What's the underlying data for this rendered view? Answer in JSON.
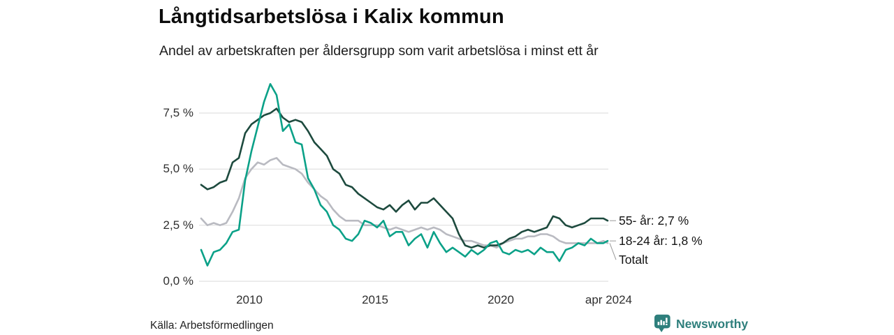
{
  "source": "Källa: Arbetsförmedlingen",
  "logo": {
    "label": "Newsworthy",
    "brand_color": "#2e7f7c"
  },
  "chart_data": {
    "type": "line",
    "title": "Långtidsarbetslösa i Kalix kommun",
    "subtitle": "Andel av arbetskraften per åldersgrupp som varit arbetslösa i minst ett år",
    "xlabel": "",
    "ylabel": "",
    "unit": "%",
    "ylim": [
      0,
      9.3
    ],
    "x_range": [
      "2008-02",
      "2024-04"
    ],
    "grid": "horizontal",
    "grid_color": "#dadada",
    "leader_color": "#999999",
    "legend_position": "end-of-line-labels",
    "y_ticks": [
      {
        "value": 7.5,
        "label": "7,5 %"
      },
      {
        "value": 5.0,
        "label": "5,0 %"
      },
      {
        "value": 2.5,
        "label": "2,5 %"
      },
      {
        "value": 0.0,
        "label": "0,0 %"
      }
    ],
    "x_ticks": [
      {
        "label": "2010",
        "position": 2010
      },
      {
        "label": "2015",
        "position": 2015
      },
      {
        "label": "2020",
        "position": 2020
      },
      {
        "label": "apr 2024",
        "position": 2024.29
      }
    ],
    "series": [
      {
        "name": "55- år",
        "color": "#1d4a3e",
        "end_label": "55- år: 2,7 %",
        "end_value": 2.7,
        "points": [
          [
            "2008-02",
            4.3
          ],
          [
            "2008-05",
            4.1
          ],
          [
            "2008-08",
            4.2
          ],
          [
            "2008-11",
            4.4
          ],
          [
            "2009-02",
            4.5
          ],
          [
            "2009-05",
            5.3
          ],
          [
            "2009-08",
            5.5
          ],
          [
            "2009-11",
            6.6
          ],
          [
            "2010-02",
            7.0
          ],
          [
            "2010-05",
            7.2
          ],
          [
            "2010-08",
            7.4
          ],
          [
            "2010-11",
            7.5
          ],
          [
            "2011-02",
            7.7
          ],
          [
            "2011-05",
            7.3
          ],
          [
            "2011-08",
            7.1
          ],
          [
            "2011-11",
            7.2
          ],
          [
            "2012-02",
            7.1
          ],
          [
            "2012-05",
            6.7
          ],
          [
            "2012-08",
            6.2
          ],
          [
            "2012-11",
            5.9
          ],
          [
            "2013-02",
            5.6
          ],
          [
            "2013-05",
            5.0
          ],
          [
            "2013-08",
            4.8
          ],
          [
            "2013-11",
            4.3
          ],
          [
            "2014-02",
            4.2
          ],
          [
            "2014-05",
            3.9
          ],
          [
            "2014-08",
            3.7
          ],
          [
            "2014-11",
            3.5
          ],
          [
            "2015-02",
            3.3
          ],
          [
            "2015-05",
            3.2
          ],
          [
            "2015-08",
            3.4
          ],
          [
            "2015-11",
            3.1
          ],
          [
            "2016-02",
            3.4
          ],
          [
            "2016-05",
            3.6
          ],
          [
            "2016-08",
            3.2
          ],
          [
            "2016-11",
            3.5
          ],
          [
            "2017-02",
            3.5
          ],
          [
            "2017-05",
            3.7
          ],
          [
            "2017-08",
            3.4
          ],
          [
            "2017-11",
            3.1
          ],
          [
            "2018-02",
            2.8
          ],
          [
            "2018-05",
            2.1
          ],
          [
            "2018-08",
            1.6
          ],
          [
            "2018-11",
            1.5
          ],
          [
            "2019-02",
            1.6
          ],
          [
            "2019-05",
            1.5
          ],
          [
            "2019-08",
            1.6
          ],
          [
            "2019-11",
            1.6
          ],
          [
            "2020-02",
            1.7
          ],
          [
            "2020-05",
            1.9
          ],
          [
            "2020-08",
            2.0
          ],
          [
            "2020-11",
            2.2
          ],
          [
            "2021-02",
            2.3
          ],
          [
            "2021-05",
            2.2
          ],
          [
            "2021-08",
            2.3
          ],
          [
            "2021-11",
            2.4
          ],
          [
            "2022-02",
            2.9
          ],
          [
            "2022-05",
            2.8
          ],
          [
            "2022-08",
            2.5
          ],
          [
            "2022-11",
            2.4
          ],
          [
            "2023-02",
            2.5
          ],
          [
            "2023-05",
            2.6
          ],
          [
            "2023-08",
            2.8
          ],
          [
            "2023-11",
            2.8
          ],
          [
            "2024-02",
            2.8
          ],
          [
            "2024-04",
            2.7
          ]
        ]
      },
      {
        "name": "18-24 år",
        "color": "#0ba188",
        "end_label": "18-24 år: 1,8 %",
        "end_value": 1.8,
        "points": [
          [
            "2008-02",
            1.4
          ],
          [
            "2008-05",
            0.7
          ],
          [
            "2008-08",
            1.3
          ],
          [
            "2008-11",
            1.4
          ],
          [
            "2009-02",
            1.7
          ],
          [
            "2009-05",
            2.2
          ],
          [
            "2009-08",
            2.3
          ],
          [
            "2009-11",
            4.5
          ],
          [
            "2010-02",
            5.8
          ],
          [
            "2010-05",
            6.9
          ],
          [
            "2010-08",
            8.0
          ],
          [
            "2010-11",
            8.8
          ],
          [
            "2011-02",
            8.3
          ],
          [
            "2011-05",
            6.7
          ],
          [
            "2011-08",
            7.0
          ],
          [
            "2011-11",
            6.2
          ],
          [
            "2012-02",
            6.1
          ],
          [
            "2012-05",
            4.6
          ],
          [
            "2012-08",
            4.1
          ],
          [
            "2012-11",
            3.4
          ],
          [
            "2013-02",
            3.1
          ],
          [
            "2013-05",
            2.5
          ],
          [
            "2013-08",
            2.3
          ],
          [
            "2013-11",
            1.9
          ],
          [
            "2014-02",
            1.8
          ],
          [
            "2014-05",
            2.1
          ],
          [
            "2014-08",
            2.7
          ],
          [
            "2014-11",
            2.6
          ],
          [
            "2015-02",
            2.4
          ],
          [
            "2015-05",
            2.7
          ],
          [
            "2015-08",
            2.0
          ],
          [
            "2015-11",
            2.2
          ],
          [
            "2016-02",
            2.2
          ],
          [
            "2016-05",
            1.6
          ],
          [
            "2016-08",
            1.9
          ],
          [
            "2016-11",
            2.1
          ],
          [
            "2017-02",
            1.5
          ],
          [
            "2017-05",
            2.2
          ],
          [
            "2017-08",
            1.7
          ],
          [
            "2017-11",
            1.3
          ],
          [
            "2018-02",
            1.5
          ],
          [
            "2018-05",
            1.3
          ],
          [
            "2018-08",
            1.1
          ],
          [
            "2018-11",
            1.4
          ],
          [
            "2019-02",
            1.2
          ],
          [
            "2019-05",
            1.4
          ],
          [
            "2019-08",
            1.7
          ],
          [
            "2019-11",
            1.8
          ],
          [
            "2020-02",
            1.3
          ],
          [
            "2020-05",
            1.2
          ],
          [
            "2020-08",
            1.4
          ],
          [
            "2020-11",
            1.3
          ],
          [
            "2021-02",
            1.4
          ],
          [
            "2021-05",
            1.2
          ],
          [
            "2021-08",
            1.5
          ],
          [
            "2021-11",
            1.3
          ],
          [
            "2022-02",
            1.3
          ],
          [
            "2022-05",
            0.9
          ],
          [
            "2022-08",
            1.4
          ],
          [
            "2022-11",
            1.5
          ],
          [
            "2023-02",
            1.7
          ],
          [
            "2023-05",
            1.6
          ],
          [
            "2023-08",
            1.9
          ],
          [
            "2023-11",
            1.7
          ],
          [
            "2024-02",
            1.7
          ],
          [
            "2024-04",
            1.8
          ]
        ]
      },
      {
        "name": "Totalt",
        "color": "#b9bac1",
        "end_label": "Totalt",
        "end_value": 1.7,
        "points": [
          [
            "2008-02",
            2.8
          ],
          [
            "2008-05",
            2.5
          ],
          [
            "2008-08",
            2.6
          ],
          [
            "2008-11",
            2.5
          ],
          [
            "2009-02",
            2.6
          ],
          [
            "2009-05",
            3.1
          ],
          [
            "2009-08",
            3.7
          ],
          [
            "2009-11",
            4.6
          ],
          [
            "2010-02",
            5.0
          ],
          [
            "2010-05",
            5.3
          ],
          [
            "2010-08",
            5.2
          ],
          [
            "2010-11",
            5.4
          ],
          [
            "2011-02",
            5.5
          ],
          [
            "2011-05",
            5.2
          ],
          [
            "2011-08",
            5.1
          ],
          [
            "2011-11",
            5.0
          ],
          [
            "2012-02",
            4.8
          ],
          [
            "2012-05",
            4.4
          ],
          [
            "2012-08",
            4.1
          ],
          [
            "2012-11",
            3.8
          ],
          [
            "2013-02",
            3.6
          ],
          [
            "2013-05",
            3.2
          ],
          [
            "2013-08",
            2.9
          ],
          [
            "2013-11",
            2.7
          ],
          [
            "2014-02",
            2.7
          ],
          [
            "2014-05",
            2.7
          ],
          [
            "2014-08",
            2.5
          ],
          [
            "2014-11",
            2.5
          ],
          [
            "2015-02",
            2.5
          ],
          [
            "2015-05",
            2.4
          ],
          [
            "2015-08",
            2.3
          ],
          [
            "2015-11",
            2.4
          ],
          [
            "2016-02",
            2.3
          ],
          [
            "2016-05",
            2.2
          ],
          [
            "2016-08",
            2.3
          ],
          [
            "2016-11",
            2.4
          ],
          [
            "2017-02",
            2.3
          ],
          [
            "2017-05",
            2.4
          ],
          [
            "2017-08",
            2.3
          ],
          [
            "2017-11",
            2.1
          ],
          [
            "2018-02",
            2.0
          ],
          [
            "2018-05",
            1.9
          ],
          [
            "2018-08",
            1.8
          ],
          [
            "2018-11",
            1.8
          ],
          [
            "2019-02",
            1.7
          ],
          [
            "2019-05",
            1.6
          ],
          [
            "2019-08",
            1.6
          ],
          [
            "2019-11",
            1.5
          ],
          [
            "2020-02",
            1.7
          ],
          [
            "2020-05",
            1.8
          ],
          [
            "2020-08",
            1.9
          ],
          [
            "2020-11",
            1.9
          ],
          [
            "2021-02",
            2.0
          ],
          [
            "2021-05",
            2.0
          ],
          [
            "2021-08",
            2.1
          ],
          [
            "2021-11",
            2.1
          ],
          [
            "2022-02",
            2.0
          ],
          [
            "2022-05",
            1.8
          ],
          [
            "2022-08",
            1.7
          ],
          [
            "2022-11",
            1.7
          ],
          [
            "2023-02",
            1.7
          ],
          [
            "2023-05",
            1.7
          ],
          [
            "2023-08",
            1.7
          ],
          [
            "2023-11",
            1.7
          ],
          [
            "2024-02",
            1.8
          ],
          [
            "2024-04",
            1.7
          ]
        ]
      }
    ]
  }
}
